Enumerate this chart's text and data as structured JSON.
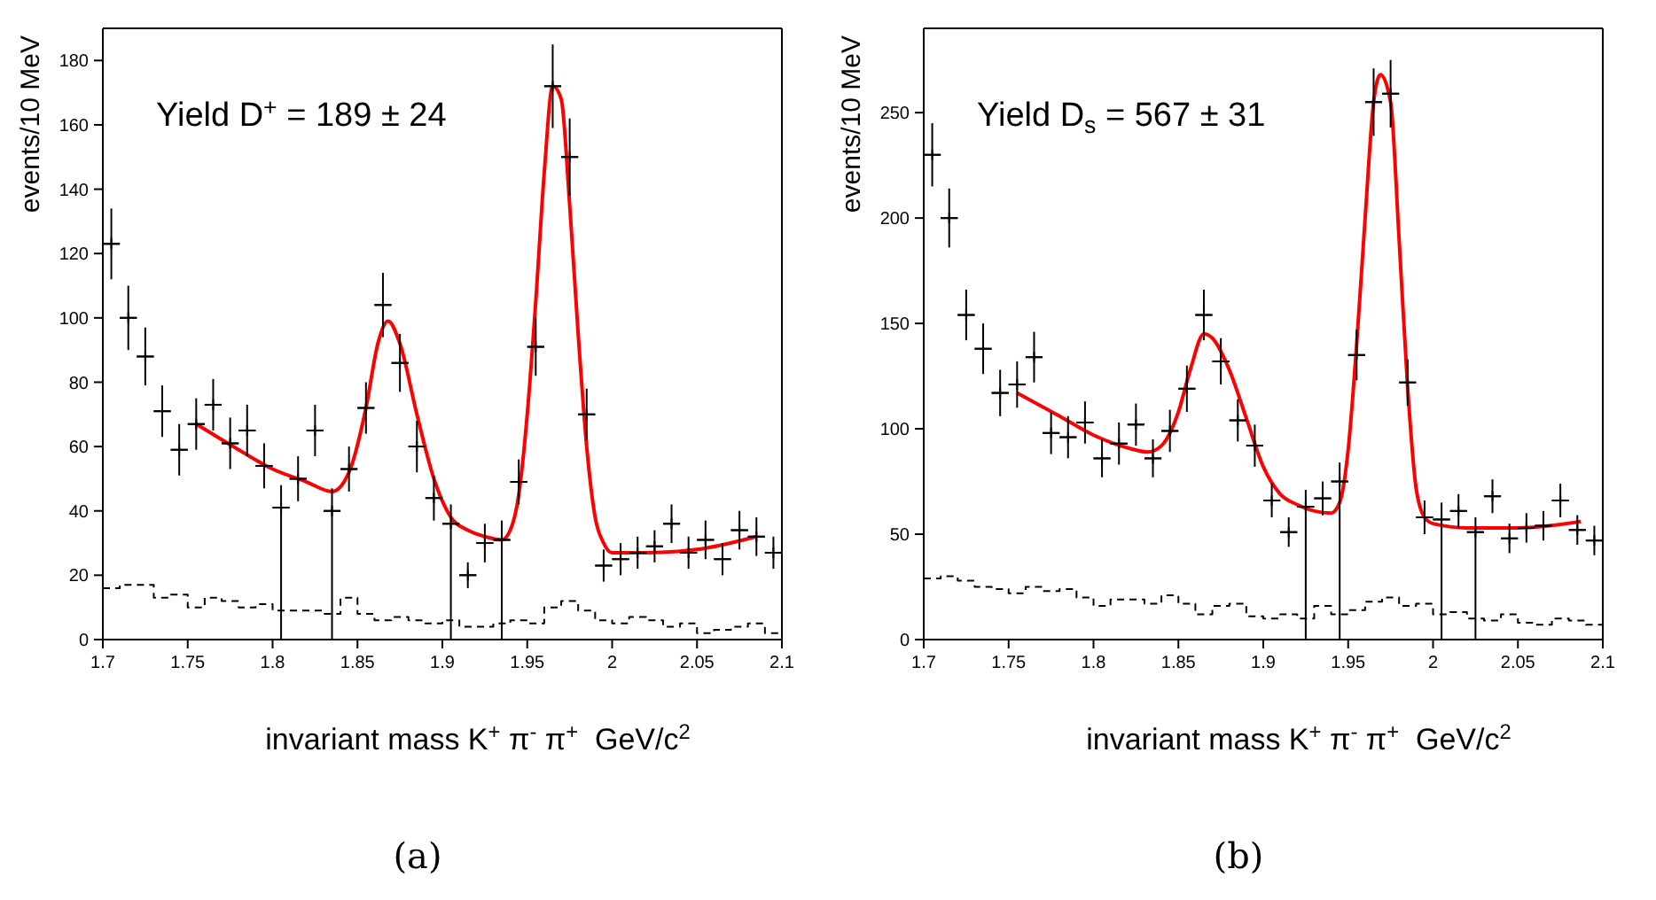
{
  "chart_data": [
    {
      "type": "scatter",
      "subtitle": "(a)",
      "xlabel": "invariant mass K$^{+}$ π$^{-}$ π$^{+}$  GeV/c$^{2}$",
      "ylabel": "events/10 MeV",
      "annotations": [
        "Yield D$^{+}$ = 189 ± 24"
      ],
      "xlim": [
        1.7,
        2.1
      ],
      "xticks": [
        1.7,
        1.75,
        1.8,
        1.85,
        1.9,
        1.95,
        2,
        2.05,
        2.1
      ],
      "ylim": [
        0,
        190
      ],
      "yticks": [
        0,
        20,
        40,
        60,
        80,
        100,
        120,
        140,
        160,
        180
      ],
      "grid": false,
      "legend": false,
      "series": [
        {
          "color": "#000000",
          "marker": "cross",
          "x": [
            1.705,
            1.715,
            1.725,
            1.735,
            1.745,
            1.755,
            1.765,
            1.775,
            1.785,
            1.795,
            1.805,
            1.815,
            1.825,
            1.835,
            1.845,
            1.855,
            1.865,
            1.875,
            1.885,
            1.895,
            1.905,
            1.915,
            1.925,
            1.935,
            1.945,
            1.955,
            1.965,
            1.975,
            1.985,
            1.995,
            2.005,
            2.015,
            2.025,
            2.035,
            2.045,
            2.055,
            2.065,
            2.075,
            2.085,
            2.095
          ],
          "values": [
            123,
            100,
            88,
            71,
            59,
            67,
            73,
            61,
            65,
            54,
            41,
            50,
            65,
            40,
            53,
            72,
            104,
            86,
            60,
            44,
            36,
            20,
            30,
            31,
            49,
            91,
            172,
            150,
            70,
            23,
            25,
            27,
            29,
            36,
            27,
            31,
            25,
            34,
            32,
            27
          ],
          "errors": [
            11,
            10,
            9,
            8,
            8,
            8,
            8,
            8,
            8,
            7,
            [
              0,
              48
            ],
            7,
            8,
            [
              0,
              47
            ],
            7,
            8,
            10,
            9,
            8,
            7,
            [
              0,
              42
            ],
            4,
            6,
            [
              0,
              37
            ],
            7,
            9,
            13,
            12,
            8,
            5,
            5,
            5,
            5,
            6,
            5,
            6,
            5,
            6,
            6,
            5
          ],
          "xerrors": [
            0.005,
            0.005,
            0.005,
            0.005,
            0.005,
            0.005,
            0.005,
            0.005,
            0.005,
            0.005,
            0.005,
            0.005,
            0.005,
            0.005,
            0.005,
            0.005,
            0.005,
            0.005,
            0.005,
            0.005,
            0.005,
            0.005,
            0.005,
            0.005,
            0.005,
            0.005,
            0.005,
            0.005,
            0.005,
            0.005,
            0.005,
            0.005,
            0.005,
            0.005,
            0.005,
            0.005,
            0.005,
            0.005,
            0.005,
            0.005
          ]
        },
        {
          "type": "line",
          "color": "#ff0000",
          "line_style": "solid",
          "x": [
            1.755,
            1.78,
            1.8,
            1.82,
            1.835,
            1.845,
            1.855,
            1.862,
            1.868,
            1.875,
            1.885,
            1.895,
            1.905,
            1.915,
            1.925,
            1.935,
            1.94,
            1.945,
            1.95,
            1.955,
            1.96,
            1.965,
            1.97,
            1.975,
            1.98,
            1.985,
            1.99,
            1.995,
            2.0,
            2.02,
            2.05,
            2.085
          ],
          "values": [
            67,
            59,
            53,
            49,
            46,
            52,
            72,
            92,
            99,
            92,
            70,
            50,
            38,
            34,
            32,
            31,
            34,
            45,
            70,
            105,
            145,
            172,
            168,
            135,
            95,
            60,
            38,
            30,
            27,
            27,
            28,
            32
          ]
        },
        {
          "type": "step",
          "color": "#000000",
          "line_style": "dashed",
          "x": [
            1.7,
            1.71,
            1.72,
            1.73,
            1.74,
            1.75,
            1.76,
            1.77,
            1.78,
            1.79,
            1.8,
            1.81,
            1.82,
            1.83,
            1.84,
            1.85,
            1.86,
            1.87,
            1.88,
            1.89,
            1.9,
            1.91,
            1.92,
            1.93,
            1.94,
            1.95,
            1.96,
            1.97,
            1.98,
            1.99,
            2.0,
            2.01,
            2.02,
            2.03,
            2.04,
            2.05,
            2.06,
            2.07,
            2.08,
            2.09,
            2.1
          ],
          "values": [
            16,
            17,
            17,
            13,
            14,
            10,
            13,
            12,
            10,
            11,
            9,
            9,
            9,
            8,
            13,
            8,
            6,
            7,
            6,
            5,
            6,
            4,
            4,
            5,
            6,
            5,
            10,
            12,
            9,
            6,
            5,
            7,
            6,
            4,
            5,
            2,
            3,
            4,
            5,
            2,
            2
          ]
        }
      ]
    },
    {
      "type": "scatter",
      "subtitle": "(b)",
      "xlabel": "invariant mass K$^{+}$ π$^{-}$ π$^{+}$  GeV/c$^{2}$",
      "ylabel": "events/10 MeV",
      "annotations": [
        "Yield D$_{s}$ = 567 ± 31"
      ],
      "xlim": [
        1.7,
        2.1
      ],
      "xticks": [
        1.7,
        1.75,
        1.8,
        1.85,
        1.9,
        1.95,
        2,
        2.05,
        2.1
      ],
      "ylim": [
        0,
        290
      ],
      "yticks": [
        0,
        50,
        100,
        150,
        200,
        250
      ],
      "grid": false,
      "legend": false,
      "series": [
        {
          "color": "#000000",
          "marker": "cross",
          "x": [
            1.705,
            1.715,
            1.725,
            1.735,
            1.745,
            1.755,
            1.765,
            1.775,
            1.785,
            1.795,
            1.805,
            1.815,
            1.825,
            1.835,
            1.845,
            1.855,
            1.865,
            1.875,
            1.885,
            1.895,
            1.905,
            1.915,
            1.925,
            1.935,
            1.945,
            1.955,
            1.965,
            1.975,
            1.985,
            1.995,
            2.005,
            2.015,
            2.025,
            2.035,
            2.045,
            2.055,
            2.065,
            2.075,
            2.085,
            2.095
          ],
          "values": [
            230,
            200,
            154,
            138,
            117,
            121,
            134,
            98,
            96,
            103,
            86,
            93,
            102,
            86,
            99,
            119,
            154,
            132,
            104,
            92,
            66,
            51,
            63,
            67,
            75,
            135,
            255,
            259,
            122,
            58,
            57,
            61,
            51,
            68,
            48,
            53,
            54,
            66,
            52,
            47
          ],
          "errors": [
            15,
            14,
            12,
            12,
            11,
            11,
            12,
            10,
            10,
            10,
            9,
            10,
            10,
            9,
            10,
            11,
            12,
            11,
            10,
            10,
            8,
            7,
            [
              0,
              71
            ],
            8,
            [
              0,
              84
            ],
            12,
            16,
            16,
            11,
            8,
            [
              0,
              65
            ],
            8,
            [
              0,
              58
            ],
            8,
            7,
            7,
            7,
            8,
            7,
            7
          ],
          "xerrors": [
            0.005,
            0.005,
            0.005,
            0.005,
            0.005,
            0.005,
            0.005,
            0.005,
            0.005,
            0.005,
            0.005,
            0.005,
            0.005,
            0.005,
            0.005,
            0.005,
            0.005,
            0.005,
            0.005,
            0.005,
            0.005,
            0.005,
            0.005,
            0.005,
            0.005,
            0.005,
            0.005,
            0.005,
            0.005,
            0.005,
            0.005,
            0.005,
            0.005,
            0.005,
            0.005,
            0.005,
            0.005,
            0.005,
            0.005,
            0.005
          ]
        },
        {
          "type": "line",
          "color": "#ff0000",
          "line_style": "solid",
          "x": [
            1.755,
            1.78,
            1.8,
            1.82,
            1.832,
            1.84,
            1.85,
            1.857,
            1.865,
            1.87,
            1.88,
            1.89,
            1.9,
            1.91,
            1.92,
            1.93,
            1.94,
            1.945,
            1.95,
            1.955,
            1.96,
            1.965,
            1.969,
            1.975,
            1.98,
            1.985,
            1.99,
            1.995,
            2.0,
            2.02,
            2.05,
            2.087
          ],
          "values": [
            117,
            106,
            97,
            91,
            89,
            92,
            108,
            128,
            145,
            143,
            128,
            105,
            82,
            69,
            64,
            61,
            60,
            65,
            90,
            140,
            200,
            255,
            268,
            255,
            190,
            120,
            72,
            58,
            55,
            53,
            53,
            56
          ]
        },
        {
          "type": "step",
          "color": "#000000",
          "line_style": "dashed",
          "x": [
            1.7,
            1.71,
            1.72,
            1.73,
            1.74,
            1.75,
            1.76,
            1.77,
            1.78,
            1.79,
            1.8,
            1.81,
            1.82,
            1.83,
            1.84,
            1.85,
            1.86,
            1.87,
            1.88,
            1.89,
            1.9,
            1.91,
            1.92,
            1.93,
            1.94,
            1.95,
            1.96,
            1.97,
            1.98,
            1.99,
            2.0,
            2.01,
            2.02,
            2.03,
            2.04,
            2.05,
            2.06,
            2.07,
            2.08,
            2.09,
            2.1
          ],
          "values": [
            29,
            30,
            28,
            25,
            24,
            22,
            25,
            23,
            24,
            20,
            16,
            19,
            19,
            17,
            21,
            17,
            12,
            16,
            17,
            11,
            10,
            12,
            10,
            16,
            12,
            14,
            18,
            20,
            16,
            17,
            12,
            13,
            10,
            9,
            12,
            8,
            7,
            10,
            9,
            7,
            7
          ]
        }
      ]
    }
  ]
}
